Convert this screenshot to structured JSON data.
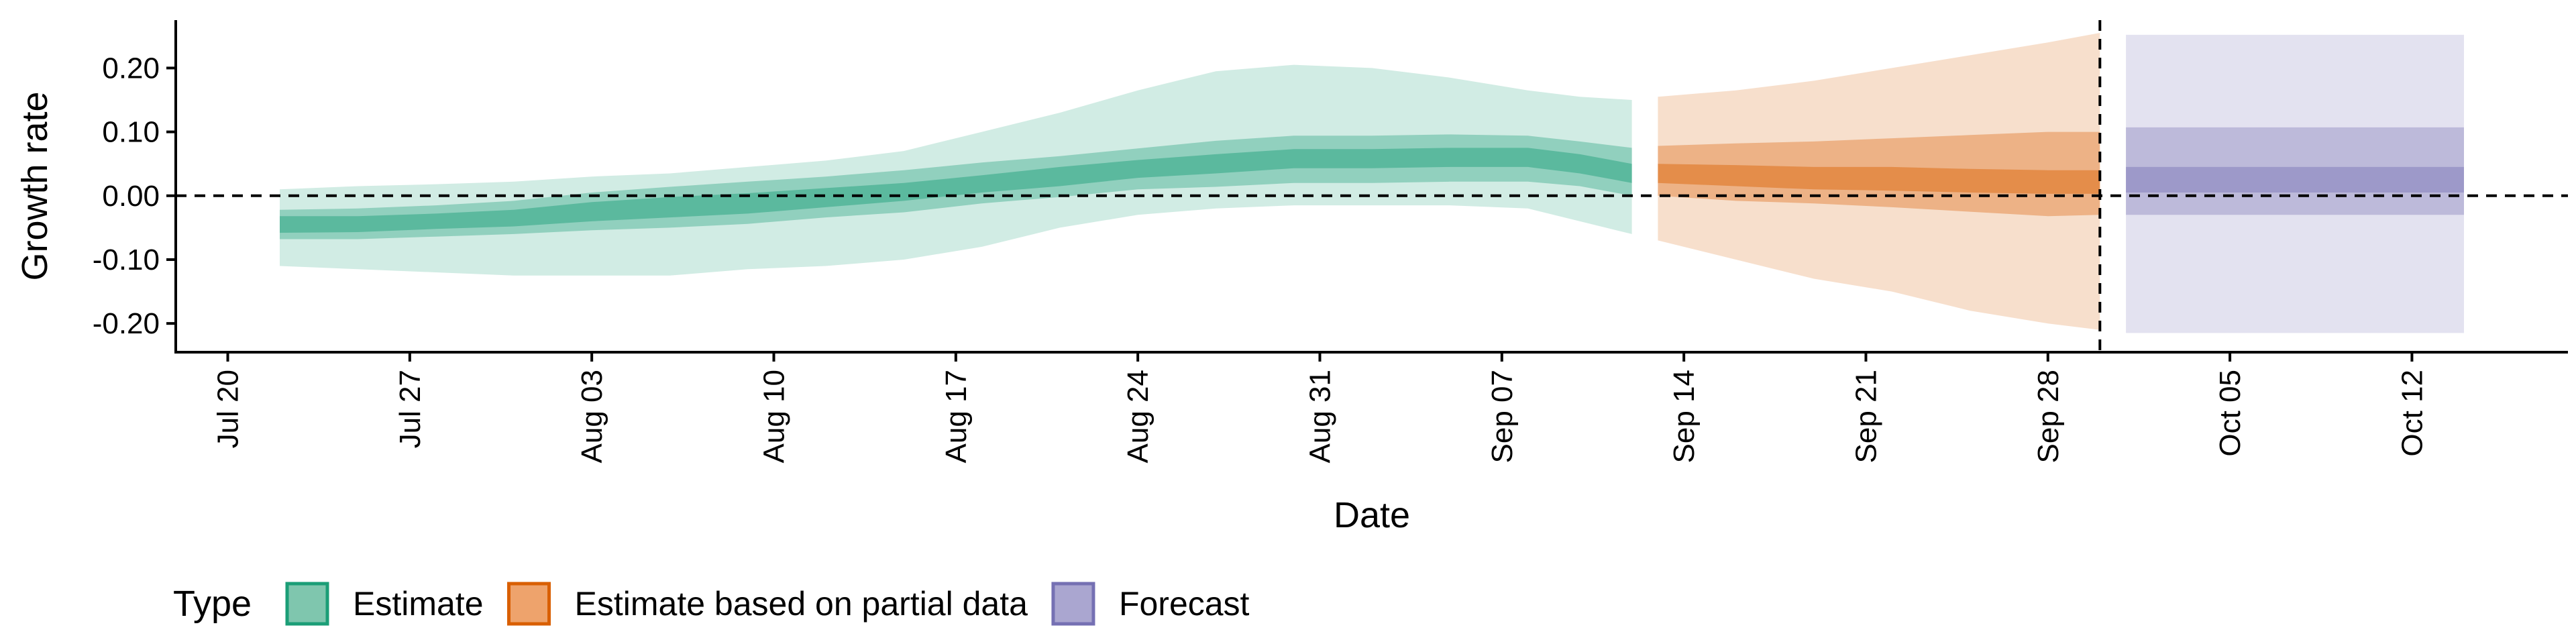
{
  "chart_data": {
    "type": "area",
    "xlabel": "Date",
    "ylabel": "Growth rate",
    "x_ticks": [
      "2020-07-20",
      "2020-07-27",
      "2020-08-03",
      "2020-08-10",
      "2020-08-17",
      "2020-08-24",
      "2020-08-31",
      "2020-09-07",
      "2020-09-14",
      "2020-09-21",
      "2020-09-28",
      "2020-10-05",
      "2020-10-12"
    ],
    "x_tick_labels": [
      "Jul 20",
      "Jul 27",
      "Aug 03",
      "Aug 10",
      "Aug 17",
      "Aug 24",
      "Aug 31",
      "Sep 07",
      "Sep 14",
      "Sep 21",
      "Sep 28",
      "Oct 05",
      "Oct 12"
    ],
    "xlim": [
      "2020-07-18",
      "2020-10-18"
    ],
    "y_ticks": [
      -0.2,
      -0.1,
      0.0,
      0.1,
      0.2
    ],
    "y_tick_labels": [
      "-0.20",
      "-0.10",
      "0.00",
      "0.10",
      "0.20"
    ],
    "ylim": [
      -0.245,
      0.275
    ],
    "hline_y": 0.0,
    "vline_x": "2020-09-30",
    "legend": {
      "title": "Type",
      "position": "bottom-left",
      "entries": [
        {
          "label": "Estimate",
          "fill": "#7fc6ae",
          "stroke": "#1b9e77"
        },
        {
          "label": "Estimate based on partial data",
          "fill": "#eea36c",
          "stroke": "#d95f02"
        },
        {
          "label": "Forecast",
          "fill": "#aaa6d0",
          "stroke": "#7570b3"
        }
      ]
    },
    "series": [
      {
        "name": "Estimate",
        "color": "#1b9e77",
        "x": [
          "2020-07-22",
          "2020-07-25",
          "2020-07-28",
          "2020-07-31",
          "2020-08-03",
          "2020-08-06",
          "2020-08-09",
          "2020-08-12",
          "2020-08-15",
          "2020-08-18",
          "2020-08-21",
          "2020-08-24",
          "2020-08-27",
          "2020-08-30",
          "2020-09-02",
          "2020-09-05",
          "2020-09-08",
          "2020-09-10",
          "2020-09-12"
        ],
        "median": [
          -0.045,
          -0.045,
          -0.04,
          -0.035,
          -0.025,
          -0.018,
          -0.012,
          -0.005,
          0.005,
          0.018,
          0.03,
          0.042,
          0.05,
          0.058,
          0.058,
          0.06,
          0.06,
          0.05,
          0.035
        ],
        "lower_20": [
          -0.058,
          -0.057,
          -0.052,
          -0.048,
          -0.04,
          -0.034,
          -0.028,
          -0.018,
          -0.008,
          0.005,
          0.015,
          0.028,
          0.035,
          0.043,
          0.043,
          0.045,
          0.045,
          0.035,
          0.02
        ],
        "upper_20": [
          -0.032,
          -0.032,
          -0.028,
          -0.022,
          -0.01,
          -0.002,
          0.004,
          0.012,
          0.02,
          0.032,
          0.045,
          0.056,
          0.065,
          0.073,
          0.073,
          0.075,
          0.075,
          0.065,
          0.05
        ],
        "lower_50": [
          -0.068,
          -0.068,
          -0.064,
          -0.06,
          -0.054,
          -0.05,
          -0.044,
          -0.034,
          -0.026,
          -0.012,
          -0.002,
          0.01,
          0.014,
          0.02,
          0.02,
          0.022,
          0.022,
          0.015,
          0.0
        ],
        "upper_50": [
          -0.022,
          -0.02,
          -0.015,
          -0.008,
          0.005,
          0.014,
          0.022,
          0.03,
          0.04,
          0.052,
          0.062,
          0.074,
          0.086,
          0.094,
          0.094,
          0.096,
          0.094,
          0.085,
          0.075
        ],
        "lower_90": [
          -0.11,
          -0.115,
          -0.12,
          -0.125,
          -0.125,
          -0.125,
          -0.115,
          -0.11,
          -0.1,
          -0.08,
          -0.05,
          -0.03,
          -0.02,
          -0.015,
          -0.015,
          -0.015,
          -0.02,
          -0.04,
          -0.06
        ],
        "upper_90": [
          0.01,
          0.015,
          0.018,
          0.022,
          0.03,
          0.035,
          0.045,
          0.055,
          0.07,
          0.1,
          0.13,
          0.165,
          0.195,
          0.205,
          0.2,
          0.185,
          0.165,
          0.155,
          0.15
        ]
      },
      {
        "name": "Estimate based on partial data",
        "color": "#d95f02",
        "x": [
          "2020-09-13",
          "2020-09-16",
          "2020-09-19",
          "2020-09-22",
          "2020-09-25",
          "2020-09-28",
          "2020-09-30"
        ],
        "median": [
          0.035,
          0.03,
          0.025,
          0.025,
          0.02,
          0.02,
          0.02
        ],
        "lower_20": [
          0.02,
          0.015,
          0.01,
          0.008,
          0.005,
          0.003,
          0.003
        ],
        "upper_20": [
          0.05,
          0.048,
          0.045,
          0.045,
          0.042,
          0.04,
          0.04
        ],
        "lower_50": [
          0.0,
          -0.008,
          -0.012,
          -0.018,
          -0.025,
          -0.032,
          -0.03
        ],
        "upper_50": [
          0.078,
          0.082,
          0.085,
          0.09,
          0.095,
          0.1,
          0.1
        ],
        "lower_90": [
          -0.07,
          -0.1,
          -0.13,
          -0.15,
          -0.18,
          -0.2,
          -0.21
        ],
        "upper_90": [
          0.155,
          0.165,
          0.18,
          0.2,
          0.22,
          0.24,
          0.255
        ]
      },
      {
        "name": "Forecast",
        "color": "#7570b3",
        "x": [
          "2020-10-01",
          "2020-10-14"
        ],
        "median": [
          0.04,
          0.04
        ],
        "lower_20": [
          0.005,
          0.005
        ],
        "upper_20": [
          0.045,
          0.045
        ],
        "lower_50": [
          -0.03,
          -0.03
        ],
        "upper_50": [
          0.107,
          0.107
        ],
        "lower_90": [
          -0.215,
          -0.215
        ],
        "upper_90": [
          0.252,
          0.252
        ]
      }
    ]
  }
}
